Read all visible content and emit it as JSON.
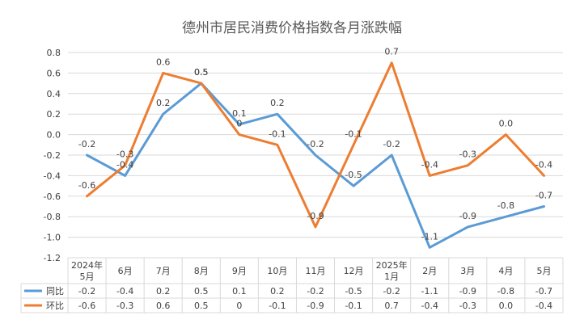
{
  "chart_data": {
    "type": "line",
    "title": "德州市居民消费价格指数各月涨跌幅",
    "categories": [
      "2024年\n5月",
      "6月",
      "7月",
      "8月",
      "9月",
      "10月",
      "11月",
      "12月",
      "2025年\n1月",
      "2月",
      "3月",
      "4月",
      "5月"
    ],
    "ylim": [
      -1.2,
      0.8
    ],
    "yticks": [
      "0.8",
      "0.6",
      "0.4",
      "0.2",
      "0.0",
      "-0.2",
      "-0.4",
      "-0.6",
      "-0.8",
      "-1.0",
      "-1.2"
    ],
    "grid": true,
    "legend_placement": "data-table",
    "series": [
      {
        "name": "同比",
        "color": "#5b9bd5",
        "values": [
          -0.2,
          -0.4,
          0.2,
          0.5,
          0.1,
          0.2,
          -0.2,
          -0.5,
          -0.2,
          -1.1,
          -0.9,
          -0.8,
          -0.7
        ],
        "labels": [
          "-0.2",
          "-0.4",
          "0.2",
          "0.5",
          "0.1",
          "0.2",
          "-0.2",
          "-0.5",
          "-0.2",
          "-1.1",
          "-0.9",
          "-0.8",
          "-0.7"
        ]
      },
      {
        "name": "环比",
        "color": "#ed7d31",
        "values": [
          -0.6,
          -0.3,
          0.6,
          0.5,
          0.0,
          -0.1,
          -0.9,
          -0.1,
          0.7,
          -0.4,
          -0.3,
          0.0,
          -0.4
        ],
        "labels": [
          "-0.6",
          "-0.3",
          "0.6",
          "0.5",
          "0",
          "-0.1",
          "-0.9",
          "-0.1",
          "0.7",
          "-0.4",
          "-0.3",
          "0.0",
          "-0.4"
        ]
      }
    ]
  }
}
